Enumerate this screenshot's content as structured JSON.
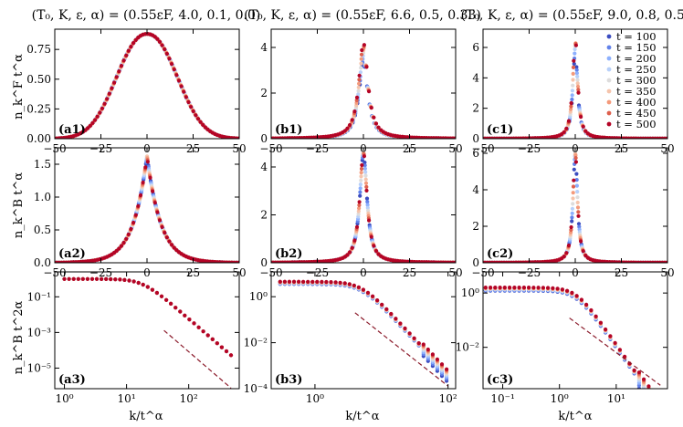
{
  "figure": {
    "column_titles": [
      "(T₀, K, ε, α) = (0.55εF, 4.0, 0.1, 0.0)",
      "(T₀, K, ε, α) = (0.55εF, 6.6, 0.5, 0.33)",
      "(T₀, K, ε, α) = (0.55εF, 9.0, 0.8, 0.5)"
    ],
    "row_ylabels": [
      "n_k^F t^α",
      "n_k^B t^α",
      "n_k^B t^2α"
    ],
    "xlabel_bottom": "k/t^α",
    "legend": {
      "placement": "top-right of panel (c1)",
      "entries": [
        "t = 100",
        "t = 150",
        "t = 200",
        "t = 250",
        "t = 300",
        "t = 350",
        "t = 400",
        "t = 450",
        "t = 500"
      ],
      "colors": [
        "#3b4cc0",
        "#6282ea",
        "#8db0fe",
        "#b8d0f9",
        "#dddcdc",
        "#f5c4ac",
        "#f49a7b",
        "#de604d",
        "#b40426"
      ]
    }
  },
  "chart_data": [
    {
      "id": "a1",
      "type": "scatter",
      "label": "(a1)",
      "xlim": [
        -50,
        50
      ],
      "ylim": [
        0,
        0.92
      ],
      "xscale": "linear",
      "yscale": "linear",
      "xticks": [
        -50,
        -25,
        0,
        25,
        50
      ],
      "xtick_labels": [
        "−50",
        "−25",
        "0",
        "25",
        "50"
      ],
      "yticks": [
        0,
        0.25,
        0.5,
        0.75
      ],
      "ytick_labels": [
        "0.00",
        "0.25",
        "0.50",
        "0.75"
      ],
      "shape": {
        "kind": "flattop",
        "amp": 0.88,
        "width": 22,
        "power": 2.2
      },
      "spread": 0.0
    },
    {
      "id": "b1",
      "type": "scatter",
      "label": "(b1)",
      "xlim": [
        -50,
        50
      ],
      "ylim": [
        0,
        4.8
      ],
      "xscale": "linear",
      "yscale": "linear",
      "xticks": [
        -50,
        -25,
        0,
        25,
        50
      ],
      "xtick_labels": [
        "−50",
        "−25",
        "0",
        "25",
        "50"
      ],
      "yticks": [
        0,
        2,
        4
      ],
      "ytick_labels": [
        "0",
        "2",
        "4"
      ],
      "shape": {
        "kind": "lorentz",
        "amp": 4.2,
        "width": 3.0
      },
      "spread": 0.35
    },
    {
      "id": "c1",
      "type": "scatter",
      "label": "(c1)",
      "xlim": [
        -50,
        50
      ],
      "ylim": [
        0,
        7.2
      ],
      "xscale": "linear",
      "yscale": "linear",
      "xticks": [
        -50,
        -25,
        0,
        25,
        50
      ],
      "xtick_labels": [
        "−50",
        "−25",
        "0",
        "25",
        "50"
      ],
      "yticks": [
        0,
        2,
        4,
        6
      ],
      "ytick_labels": [
        "0",
        "2",
        "4",
        "6"
      ],
      "shape": {
        "kind": "lorentz",
        "amp": 6.6,
        "width": 1.6
      },
      "spread": 0.25
    },
    {
      "id": "a2",
      "type": "scatter",
      "label": "(a2)",
      "xlim": [
        -50,
        50
      ],
      "ylim": [
        0,
        1.75
      ],
      "xscale": "linear",
      "yscale": "linear",
      "xticks": [
        -50,
        -25,
        0,
        25,
        50
      ],
      "xtick_labels": [
        "−50",
        "−25",
        "0",
        "25",
        "50"
      ],
      "yticks": [
        0,
        0.5,
        1.0,
        1.5
      ],
      "ytick_labels": [
        "0.0",
        "0.5",
        "1.0",
        "1.5"
      ],
      "shape": {
        "kind": "cusp",
        "amp": 1.63,
        "width": 7.5
      },
      "spread": 0.0
    },
    {
      "id": "b2",
      "type": "scatter",
      "label": "(b2)",
      "xlim": [
        -50,
        50
      ],
      "ylim": [
        0,
        4.8
      ],
      "xscale": "linear",
      "yscale": "linear",
      "xticks": [
        -50,
        -25,
        0,
        25,
        50
      ],
      "xtick_labels": [
        "−50",
        "−25",
        "0",
        "25",
        "50"
      ],
      "yticks": [
        0,
        2,
        4
      ],
      "ytick_labels": [
        "0",
        "2",
        "4"
      ],
      "shape": {
        "kind": "lorentz",
        "amp": 4.6,
        "width": 2.4
      },
      "spread": 0.02
    },
    {
      "id": "c2",
      "type": "scatter",
      "label": "(c2)",
      "xlim": [
        -50,
        50
      ],
      "ylim": [
        0,
        6.3
      ],
      "xscale": "linear",
      "yscale": "linear",
      "xticks": [
        -50,
        -25,
        0,
        25,
        50
      ],
      "xtick_labels": [
        "−50",
        "−25",
        "0",
        "25",
        "50"
      ],
      "yticks": [
        0,
        2,
        4,
        6
      ],
      "ytick_labels": [
        "0",
        "2",
        "4",
        "6"
      ],
      "shape": {
        "kind": "lorentz",
        "amp": 6.0,
        "width": 1.5
      },
      "spread": 0.02
    },
    {
      "id": "a3",
      "type": "scatter",
      "label": "(a3)",
      "xlim": [
        0.7,
        650
      ],
      "ylim": [
        7e-07,
        2.5
      ],
      "xscale": "log",
      "yscale": "log",
      "xticks": [
        1,
        10,
        100
      ],
      "xtick_labels": [
        "10⁰",
        "10¹",
        "10²"
      ],
      "yticks": [
        0.1,
        0.001,
        1e-05
      ],
      "ytick_labels": [
        "10⁻¹",
        "10⁻³",
        "10⁻⁵"
      ],
      "shape": {
        "kind": "powerlaw",
        "amp": 1.0,
        "knee": 18,
        "slope": 3.0
      },
      "xrange": [
        1,
        480
      ],
      "spread": 0.0,
      "guide": {
        "x": [
          40,
          480
        ],
        "y": [
          0.0013,
          7.5e-07
        ]
      }
    },
    {
      "id": "b3",
      "type": "scatter",
      "label": "(b3)",
      "xlim": [
        0.22,
        130
      ],
      "ylim": [
        0.0001,
        12
      ],
      "xscale": "log",
      "yscale": "log",
      "xticks": [
        1,
        100
      ],
      "xtick_labels": [
        "10⁰",
        "10²"
      ],
      "yticks": [
        1,
        0.01,
        0.0001
      ],
      "ytick_labels": [
        "10⁰",
        "10⁻²",
        "10⁻⁴"
      ],
      "shape": {
        "kind": "powerlaw",
        "amp": 4.5,
        "knee": 5,
        "slope": 3.1
      },
      "xrange": [
        0.3,
        95
      ],
      "spread": 0.35,
      "guide": {
        "x": [
          4,
          100
        ],
        "y": [
          0.2,
          0.00013
        ]
      }
    },
    {
      "id": "c3",
      "type": "scatter",
      "label": "(c3)",
      "xlim": [
        0.045,
        80
      ],
      "ylim": [
        0.0003,
        6
      ],
      "xscale": "log",
      "yscale": "log",
      "xticks": [
        0.1,
        1,
        10
      ],
      "xtick_labels": [
        "10⁻¹",
        "10⁰",
        "10¹"
      ],
      "yticks": [
        1,
        0.01
      ],
      "ytick_labels": [
        "10⁰",
        "10⁻²"
      ],
      "shape": {
        "kind": "powerlaw",
        "amp": 1.6,
        "knee": 2.0,
        "slope": 3.0
      },
      "xrange": [
        0.05,
        55
      ],
      "spread": 0.4,
      "guide": {
        "x": [
          1.5,
          60
        ],
        "y": [
          0.12,
          0.0004
        ]
      }
    }
  ]
}
